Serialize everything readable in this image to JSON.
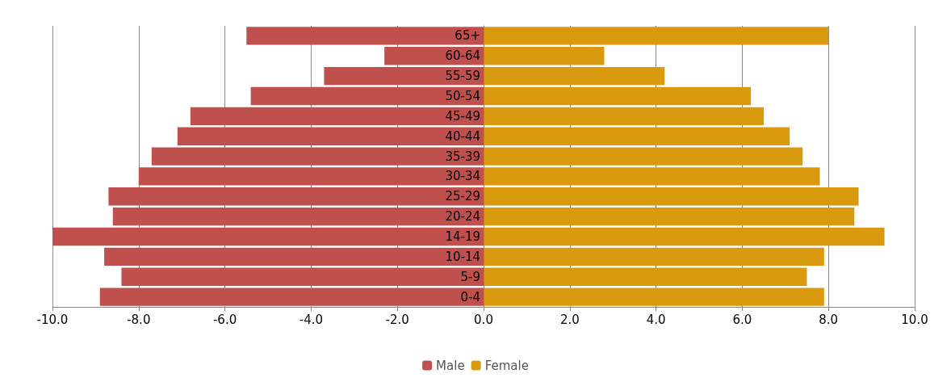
{
  "chart_data": {
    "type": "bar",
    "orientation": "horizontal",
    "categories": [
      "65+",
      "60-64",
      "55-59",
      "50-54",
      "45-49",
      "40-44",
      "35-39",
      "30-34",
      "25-29",
      "20-24",
      "14-19",
      "10-14",
      "5-9",
      "0-4"
    ],
    "series": [
      {
        "name": "Male",
        "color": "#c0504d",
        "values": [
          -5.5,
          -2.3,
          -3.7,
          -5.4,
          -6.8,
          -7.1,
          -7.7,
          -8.0,
          -8.7,
          -8.6,
          -10.0,
          -8.8,
          -8.4,
          -8.9
        ]
      },
      {
        "name": "Female",
        "color": "#d99a10",
        "values": [
          8.0,
          2.8,
          4.2,
          6.2,
          6.5,
          7.1,
          7.4,
          7.8,
          8.7,
          8.6,
          9.3,
          7.9,
          7.5,
          7.9
        ]
      }
    ],
    "xlim": [
      -10,
      10
    ],
    "xticks": [
      {
        "value": -10,
        "label": "-10.0"
      },
      {
        "value": -8,
        "label": "-8.0"
      },
      {
        "value": -6,
        "label": "-6.0"
      },
      {
        "value": -4,
        "label": "-4.0"
      },
      {
        "value": -2,
        "label": "-2.0"
      },
      {
        "value": 0,
        "label": "0.0"
      },
      {
        "value": 2,
        "label": "2.0"
      },
      {
        "value": 4,
        "label": "4.0"
      },
      {
        "value": 6,
        "label": "6.0"
      },
      {
        "value": 8,
        "label": "8.0"
      },
      {
        "value": 10,
        "label": "10.0"
      }
    ],
    "grid": "x",
    "legend": "bottom",
    "stacked": true
  }
}
